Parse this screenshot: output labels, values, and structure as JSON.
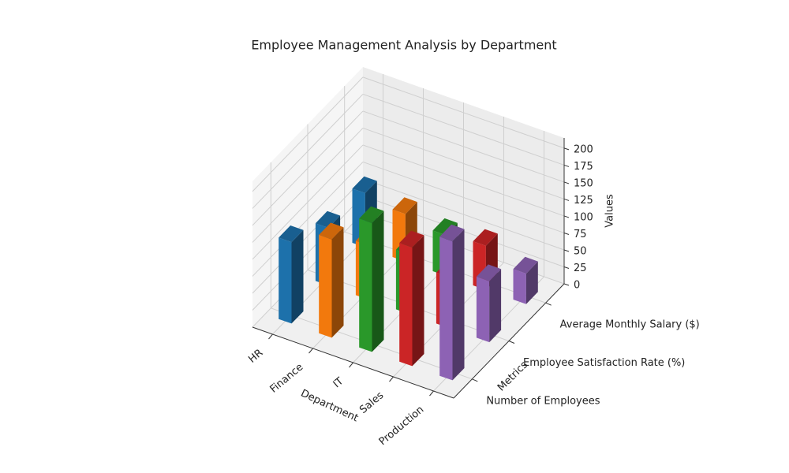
{
  "chart_data": {
    "type": "bar3d",
    "title": "Employee Management Analysis by Department",
    "xlabel": "Department",
    "ylabel": "Metrics",
    "zlabel": "Values",
    "categories": [
      "HR",
      "Finance",
      "IT",
      "Sales",
      "Production"
    ],
    "colors": [
      "#1f77b4",
      "#ff7f0e",
      "#2ca02c",
      "#d62728",
      "#9467bd"
    ],
    "series": [
      {
        "name": "Number of Employees",
        "values": [
          120,
          145,
          190,
          175,
          205
        ]
      },
      {
        "name": "Employee Satisfaction Rate (%)",
        "values": [
          85,
          80,
          88,
          75,
          90
        ]
      },
      {
        "name": "Average Monthly Salary ($)",
        "values": [
          80,
          70,
          60,
          65,
          45
        ]
      }
    ],
    "zlim": [
      0,
      215
    ],
    "zticks": [
      0,
      25,
      50,
      75,
      100,
      125,
      150,
      175,
      200
    ],
    "grid": true
  }
}
